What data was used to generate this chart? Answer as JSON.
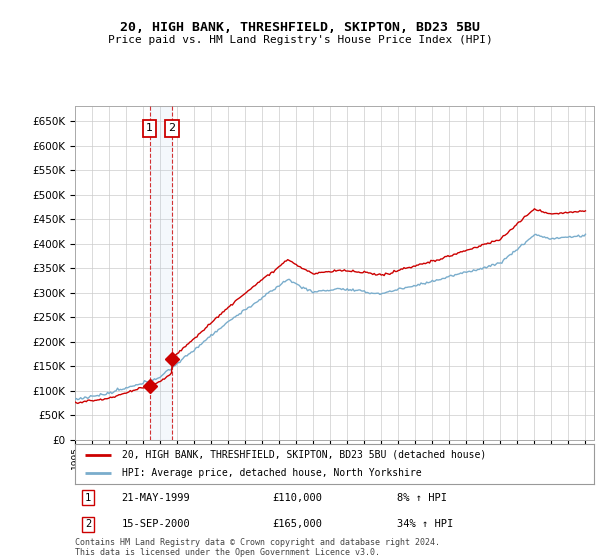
{
  "title": "20, HIGH BANK, THRESHFIELD, SKIPTON, BD23 5BU",
  "subtitle": "Price paid vs. HM Land Registry's House Price Index (HPI)",
  "ylabel_ticks": [
    0,
    50000,
    100000,
    150000,
    200000,
    250000,
    300000,
    350000,
    400000,
    450000,
    500000,
    550000,
    600000,
    650000
  ],
  "ylim": [
    0,
    680000
  ],
  "xlim_start": 1995.0,
  "xlim_end": 2025.5,
  "transaction1": {
    "date_num": 1999.38,
    "price": 110000,
    "label": "1",
    "date_str": "21-MAY-1999",
    "pct": "8% ↑ HPI"
  },
  "transaction2": {
    "date_num": 2000.71,
    "price": 165000,
    "label": "2",
    "date_str": "15-SEP-2000",
    "pct": "34% ↑ HPI"
  },
  "legend_line1": "20, HIGH BANK, THRESHFIELD, SKIPTON, BD23 5BU (detached house)",
  "legend_line2": "HPI: Average price, detached house, North Yorkshire",
  "footer": "Contains HM Land Registry data © Crown copyright and database right 2024.\nThis data is licensed under the Open Government Licence v3.0.",
  "red_color": "#cc0000",
  "blue_color": "#7aadcc",
  "grid_color": "#cccccc",
  "bg_color": "#ffffff"
}
